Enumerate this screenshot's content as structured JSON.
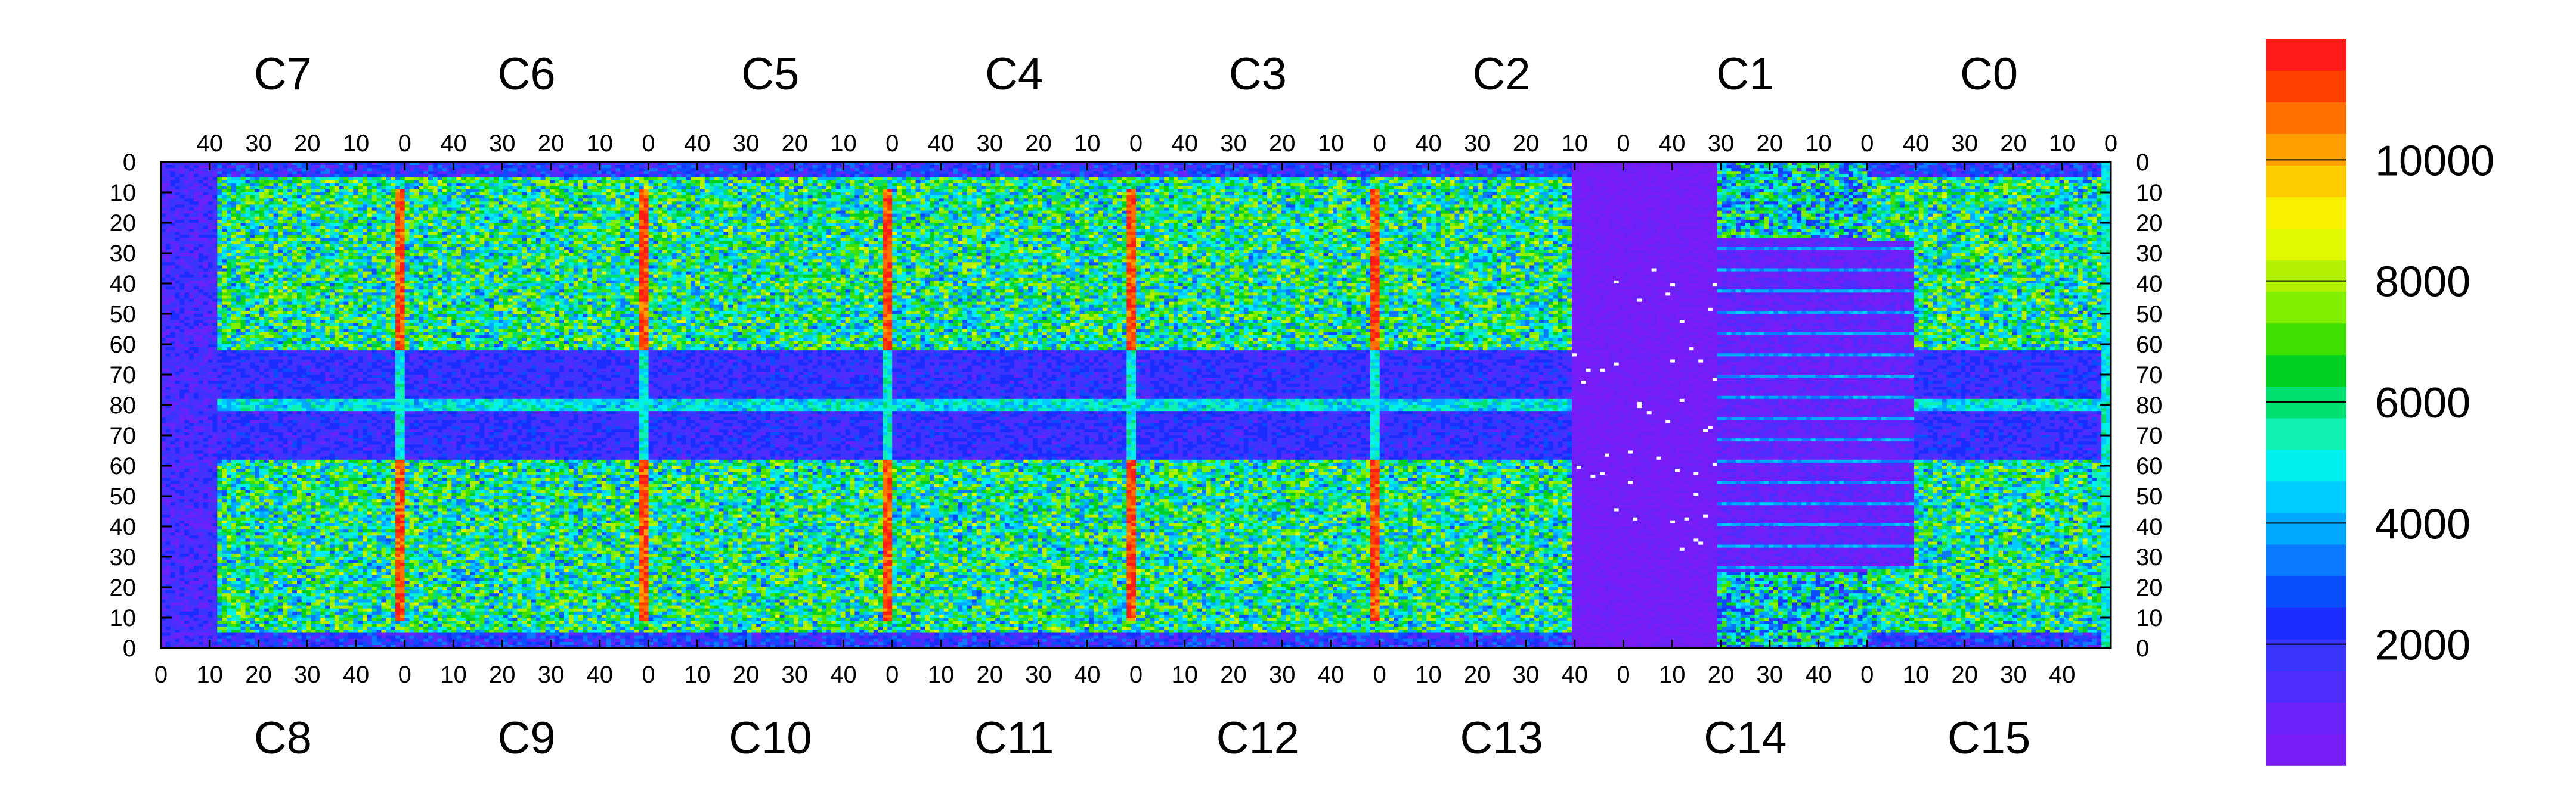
{
  "chart_data": {
    "type": "heatmap",
    "title": "",
    "xlabel": "",
    "ylabel": "",
    "top_chips": [
      "C7",
      "C6",
      "C5",
      "C4",
      "C3",
      "C2",
      "C1",
      "C0"
    ],
    "bottom_chips": [
      "C8",
      "C9",
      "C10",
      "C11",
      "C12",
      "C13",
      "C14",
      "C15"
    ],
    "top_x_ticks": [
      "40",
      "30",
      "20",
      "10",
      "0"
    ],
    "bottom_x_ticks": [
      "0",
      "10",
      "20",
      "30",
      "40"
    ],
    "y_ticks_left": [
      "0",
      "10",
      "20",
      "30",
      "40",
      "50",
      "60",
      "70",
      "80",
      "70",
      "60",
      "50",
      "40",
      "30",
      "20",
      "10",
      "0"
    ],
    "colorbar": {
      "range": [
        0,
        12000
      ],
      "ticks": [
        {
          "value": 2000,
          "label": "2000"
        },
        {
          "value": 4000,
          "label": "4000"
        },
        {
          "value": 6000,
          "label": "6000"
        },
        {
          "value": 8000,
          "label": "8000"
        },
        {
          "value": 10000,
          "label": "10000"
        }
      ],
      "colors": [
        "#7a1cf5",
        "#6a22f8",
        "#4f2cff",
        "#3a35ff",
        "#1a2cff",
        "#0a4cff",
        "#0a78ff",
        "#00a8ff",
        "#00ccff",
        "#00f0f0",
        "#10f0b0",
        "#00e070",
        "#00d020",
        "#40e000",
        "#80ef00",
        "#b0f000",
        "#e0f800",
        "#f8f000",
        "#ffcc00",
        "#ffa000",
        "#ff7000",
        "#ff4000",
        "#ff1a1a"
      ]
    },
    "hot_columns_description": "chip boundary columns show high counts",
    "regions": []
  }
}
